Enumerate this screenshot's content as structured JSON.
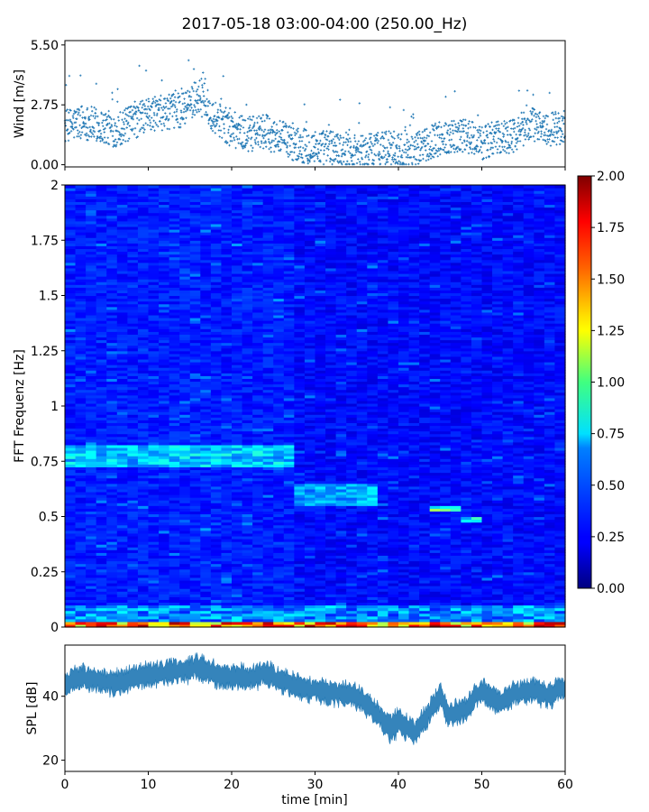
{
  "title": "2017-05-18 03:00-04:00 (250.00_Hz)",
  "colors": {
    "series": "#1f77b4",
    "axis": "#000000",
    "background": "#ffffff"
  },
  "chart_data": [
    {
      "id": "wind",
      "type": "scatter",
      "ylabel": "Wind [m/s]",
      "xlim": [
        0,
        60
      ],
      "ylim": [
        -0.1,
        5.7
      ],
      "yticks": [
        0.0,
        2.75,
        5.5
      ],
      "ytick_labels": [
        "0.00",
        "2.75",
        "5.50"
      ],
      "xtick_labels_visible": false,
      "series": [
        {
          "x": [
            0,
            2,
            4,
            6,
            8,
            10,
            12,
            14,
            16,
            18,
            20,
            22,
            24,
            26,
            28,
            30,
            32,
            34,
            36,
            38,
            40,
            42,
            44,
            46,
            48,
            50,
            52,
            54,
            56,
            58,
            60
          ],
          "y_trend": [
            1.7,
            2.0,
            1.8,
            1.6,
            1.9,
            2.3,
            2.4,
            2.5,
            3.2,
            2.2,
            1.6,
            1.4,
            1.5,
            1.2,
            0.9,
            0.8,
            0.8,
            0.7,
            0.6,
            0.8,
            0.7,
            0.6,
            1.1,
            1.3,
            1.4,
            1.0,
            1.2,
            1.4,
            1.9,
            1.6,
            1.8
          ]
        }
      ]
    },
    {
      "id": "spectrogram",
      "type": "heatmap",
      "ylabel": "FFT Frequenz [Hz]",
      "xlim": [
        0,
        60
      ],
      "ylim": [
        0,
        2
      ],
      "yticks": [
        0,
        0.25,
        0.5,
        0.75,
        1,
        1.25,
        1.5,
        1.75,
        2
      ],
      "ytick_labels": [
        "0",
        "0.25",
        "0.5",
        "0.75",
        "1",
        "1.25",
        "1.5",
        "1.75",
        "2"
      ],
      "colormap": "jet",
      "colorbar": {
        "range": [
          0,
          2
        ],
        "ticks": [
          0.0,
          0.25,
          0.5,
          0.75,
          1.0,
          1.25,
          1.5,
          1.75,
          2.0
        ],
        "tick_labels": [
          "0.00",
          "0.25",
          "0.50",
          "0.75",
          "1.00",
          "1.25",
          "1.50",
          "1.75",
          "2.00"
        ]
      },
      "features": [
        {
          "x": [
            0,
            27
          ],
          "f": [
            0.72,
            0.82
          ],
          "value": 0.75
        },
        {
          "x": [
            27,
            38
          ],
          "f": [
            0.55,
            0.65
          ],
          "value": 0.7
        },
        {
          "x": [
            44,
            47
          ],
          "f": [
            0.53,
            0.55
          ],
          "value": 1.0
        },
        {
          "x": [
            47,
            50
          ],
          "f": [
            0.47,
            0.5
          ],
          "value": 0.9
        },
        {
          "x": [
            0,
            60
          ],
          "f": [
            0,
            0.03
          ],
          "value": 1.8
        }
      ]
    },
    {
      "id": "spl",
      "type": "area",
      "ylabel": "SPL [dB]",
      "xlabel": "time [min]",
      "xlim": [
        0,
        60
      ],
      "ylim": [
        16.5,
        56
      ],
      "yticks": [
        20,
        40
      ],
      "ytick_labels": [
        "20",
        "40"
      ],
      "xticks": [
        0,
        10,
        20,
        30,
        40,
        50,
        60
      ],
      "xtick_labels": [
        "0",
        "10",
        "20",
        "30",
        "40",
        "50",
        "60"
      ],
      "series": [
        {
          "x": [
            0,
            2,
            4,
            6,
            8,
            10,
            12,
            14,
            16,
            18,
            20,
            22,
            24,
            26,
            28,
            30,
            32,
            34,
            36,
            38,
            39,
            40,
            42,
            44,
            45,
            46,
            48,
            50,
            52,
            54,
            56,
            58,
            60
          ],
          "mean": [
            44,
            46,
            45,
            44,
            46,
            47,
            47,
            48,
            49,
            47,
            46,
            46,
            47,
            45,
            43,
            42,
            41,
            41,
            38,
            33,
            30,
            32,
            29,
            36,
            40,
            34,
            36,
            42,
            38,
            41,
            42,
            40,
            43
          ],
          "spread": [
            3,
            3,
            3,
            3,
            3,
            3,
            3,
            3,
            3,
            3,
            3,
            3,
            3,
            3,
            3,
            3,
            3,
            3,
            3,
            3,
            4,
            3,
            3,
            3,
            3,
            3,
            3,
            3,
            3,
            3,
            3,
            3,
            3
          ]
        }
      ]
    }
  ]
}
